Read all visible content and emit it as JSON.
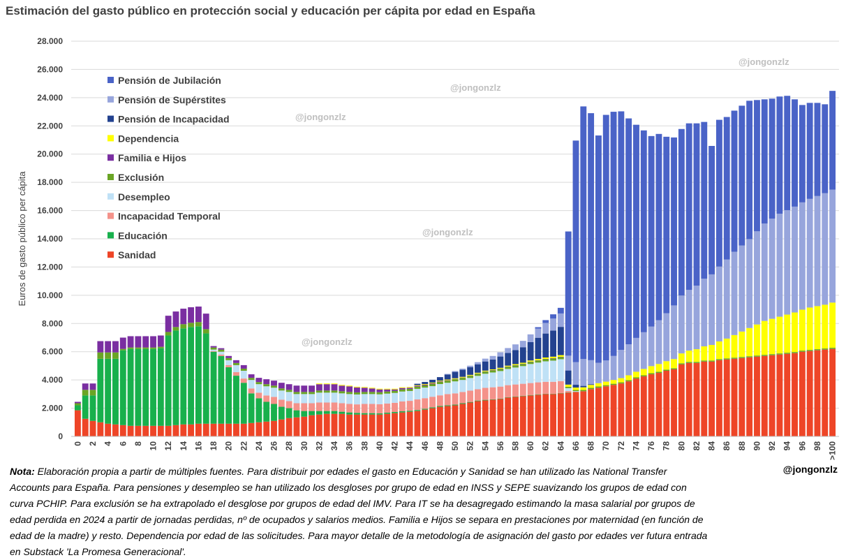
{
  "header": {
    "title": "Estimación del gasto público en protección social y educación per cápita por edad en España"
  },
  "watermarks": [
    "@jongonzlz",
    "@jongonzlz",
    "@jongonzlz",
    "@jongonzlz",
    "@jongonzlz"
  ],
  "note": {
    "label": "Nota:",
    "text": "Elaboración propia a partir de múltiples fuentes. Para distribuir por edades el gasto en Educación y Sanidad se han utilizado las National Transfer Accounts para España. Para pensiones y desempleo se han utilizado los desgloses por grupo de edad en INSS y SEPE suavizando los grupos de edad con curva PCHIP. Para exclusión se ha extrapolado el desglose por grupos de edad del IMV. Para IT se ha desagregado estimando la masa salarial por grupos de edad perdida en 2024 a partir de jornadas perdidas, nº de ocupados y salarios medios. Familia e Hijos se separa en prestaciones por maternidad (en función de edad de la madre) y resto. Dependencia por edad de las solicitudes. Para mayor detalle de la metodología de asignación del gasto por edades ver futura entrada en Substack 'La Promesa Generacional'."
  },
  "signature": "@jongonzlz",
  "chart_data": {
    "type": "bar",
    "stacked": true,
    "title": "Estimación del gasto público en protección social y educación per cápita por edad en España",
    "ylabel": "Euros de gasto público per cápita",
    "xlabel": "",
    "ylim": [
      0,
      28000
    ],
    "y_ticks": [
      "0",
      "2.000",
      "4.000",
      "6.000",
      "8.000",
      "10.000",
      "12.000",
      "14.000",
      "16.000",
      "18.000",
      "20.000",
      "22.000",
      "24.000",
      "26.000",
      "28.000"
    ],
    "y_tick_values": [
      0,
      2000,
      4000,
      6000,
      8000,
      10000,
      12000,
      14000,
      16000,
      18000,
      20000,
      22000,
      24000,
      26000,
      28000
    ],
    "categories": [
      "0",
      "1",
      "2",
      "3",
      "4",
      "5",
      "6",
      "7",
      "8",
      "9",
      "10",
      "11",
      "12",
      "13",
      "14",
      "15",
      "16",
      "17",
      "18",
      "19",
      "20",
      "21",
      "22",
      "23",
      "24",
      "25",
      "26",
      "27",
      "28",
      "29",
      "30",
      "31",
      "32",
      "33",
      "34",
      "35",
      "36",
      "37",
      "38",
      "39",
      "40",
      "41",
      "42",
      "43",
      "44",
      "45",
      "46",
      "47",
      "48",
      "49",
      "50",
      "51",
      "52",
      "53",
      "54",
      "55",
      "56",
      "57",
      "58",
      "59",
      "60",
      "61",
      "62",
      "63",
      "64",
      "65",
      "66",
      "67",
      "68",
      "69",
      "70",
      "71",
      "72",
      "73",
      "74",
      "75",
      "76",
      "77",
      "78",
      "79",
      "80",
      "81",
      "82",
      "83",
      "84",
      "85",
      "86",
      "87",
      "88",
      "89",
      "90",
      "91",
      "92",
      "93",
      "94",
      "95",
      "96",
      "97",
      "98",
      "99",
      ">100"
    ],
    "x_tick_labels": [
      "0",
      "2",
      "4",
      "6",
      "8",
      "10",
      "12",
      "14",
      "16",
      "18",
      "20",
      "22",
      "24",
      "26",
      "28",
      "30",
      "32",
      "34",
      "36",
      "38",
      "40",
      "42",
      "44",
      "46",
      "48",
      "50",
      "52",
      "54",
      "56",
      "58",
      "60",
      "62",
      "64",
      "66",
      "68",
      "70",
      "72",
      "74",
      "76",
      "78",
      "80",
      "82",
      "84",
      "86",
      "88",
      "90",
      "92",
      "94",
      "96",
      "98",
      ">100"
    ],
    "grid": true,
    "legend_position": "top-left",
    "series": [
      {
        "name": "Sanidad",
        "color": "#ee4527",
        "values": [
          1850,
          1250,
          1100,
          1000,
          900,
          850,
          800,
          750,
          750,
          750,
          750,
          750,
          750,
          800,
          850,
          850,
          900,
          900,
          900,
          900,
          900,
          900,
          900,
          950,
          1000,
          1050,
          1100,
          1200,
          1300,
          1350,
          1400,
          1500,
          1550,
          1600,
          1600,
          1600,
          1550,
          1550,
          1550,
          1550,
          1550,
          1600,
          1650,
          1700,
          1750,
          1800,
          1900,
          2000,
          2100,
          2150,
          2200,
          2300,
          2400,
          2500,
          2550,
          2600,
          2650,
          2750,
          2800,
          2850,
          2900,
          2950,
          3000,
          3000,
          3050,
          3100,
          3150,
          3200,
          3350,
          3450,
          3550,
          3650,
          3750,
          3900,
          4100,
          4250,
          4400,
          4500,
          4650,
          4750,
          5100,
          5200,
          5200,
          5300,
          5300,
          5400,
          5450,
          5500,
          5550,
          5600,
          5650,
          5700,
          5750,
          5800,
          5850,
          5900,
          6000,
          6050,
          6100,
          6150,
          6200
        ]
      },
      {
        "name": "Educación",
        "color": "#18b04c",
        "values": [
          350,
          1650,
          1800,
          4500,
          4600,
          4650,
          5300,
          5450,
          5450,
          5450,
          5450,
          5500,
          6400,
          6700,
          6800,
          6900,
          6900,
          6400,
          5100,
          4800,
          4000,
          3400,
          2900,
          2100,
          1700,
          1400,
          1200,
          900,
          700,
          500,
          400,
          300,
          250,
          200,
          200,
          150,
          150,
          120,
          100,
          100,
          80,
          80,
          80,
          80,
          70,
          70,
          60,
          60,
          60,
          50,
          50,
          50,
          40,
          40,
          40,
          30,
          30,
          30,
          30,
          30,
          30,
          30,
          20,
          20,
          20,
          20,
          10,
          10,
          10,
          10,
          0,
          0,
          0,
          0,
          0,
          0,
          0,
          0,
          0,
          0,
          0,
          0,
          0,
          0,
          0,
          0,
          0,
          0,
          0,
          0,
          0,
          0,
          0,
          0,
          0,
          0,
          0,
          0,
          0,
          0,
          0
        ]
      },
      {
        "name": "Incapacidad Temporal",
        "color": "#f4928a",
        "values": [
          0,
          0,
          0,
          0,
          0,
          0,
          0,
          0,
          0,
          0,
          0,
          0,
          0,
          0,
          0,
          0,
          0,
          0,
          50,
          100,
          150,
          250,
          300,
          350,
          400,
          450,
          500,
          500,
          500,
          500,
          550,
          550,
          600,
          600,
          600,
          600,
          600,
          600,
          650,
          650,
          650,
          650,
          650,
          700,
          700,
          750,
          750,
          750,
          750,
          800,
          800,
          800,
          800,
          800,
          850,
          850,
          850,
          850,
          850,
          850,
          850,
          850,
          850,
          850,
          850,
          100,
          0,
          0,
          0,
          0,
          0,
          0,
          0,
          0,
          0,
          0,
          0,
          0,
          0,
          0,
          0,
          0,
          0,
          0,
          0,
          0,
          0,
          0,
          0,
          0,
          0,
          0,
          0,
          0,
          0,
          0,
          0,
          0,
          0,
          0,
          0
        ]
      },
      {
        "name": "Desempleo",
        "color": "#bfe1f6",
        "values": [
          0,
          0,
          0,
          0,
          0,
          0,
          0,
          0,
          0,
          0,
          0,
          0,
          0,
          0,
          0,
          0,
          0,
          0,
          100,
          200,
          350,
          500,
          550,
          600,
          600,
          650,
          650,
          650,
          650,
          650,
          650,
          650,
          700,
          700,
          700,
          700,
          700,
          700,
          700,
          700,
          700,
          700,
          700,
          700,
          700,
          750,
          750,
          750,
          800,
          800,
          850,
          850,
          900,
          950,
          1000,
          1050,
          1100,
          1150,
          1200,
          1250,
          1350,
          1400,
          1450,
          1500,
          1550,
          200,
          50,
          0,
          0,
          0,
          0,
          0,
          0,
          0,
          0,
          0,
          0,
          0,
          0,
          0,
          0,
          0,
          0,
          0,
          0,
          0,
          0,
          0,
          0,
          0,
          0,
          0,
          0,
          0,
          0,
          0,
          0,
          0,
          0,
          0,
          0
        ]
      },
      {
        "name": "Exclusión",
        "color": "#6aa525",
        "values": [
          150,
          400,
          400,
          450,
          450,
          450,
          100,
          100,
          100,
          100,
          100,
          100,
          250,
          250,
          300,
          300,
          300,
          300,
          150,
          150,
          150,
          150,
          150,
          150,
          150,
          150,
          150,
          150,
          150,
          150,
          150,
          150,
          150,
          150,
          150,
          150,
          150,
          150,
          150,
          150,
          150,
          150,
          150,
          150,
          150,
          150,
          150,
          150,
          150,
          150,
          150,
          150,
          150,
          150,
          150,
          150,
          150,
          150,
          150,
          150,
          150,
          150,
          150,
          150,
          150,
          100,
          80,
          80,
          80,
          80,
          80,
          80,
          80,
          80,
          80,
          80,
          80,
          80,
          80,
          80,
          80,
          80,
          80,
          80,
          80,
          80,
          80,
          80,
          80,
          80,
          80,
          80,
          80,
          80,
          80,
          80,
          80,
          80,
          80,
          80,
          80
        ]
      },
      {
        "name": "Familia e Hijos",
        "color": "#7a2ea1",
        "values": [
          100,
          450,
          450,
          800,
          800,
          800,
          800,
          800,
          800,
          800,
          800,
          800,
          1150,
          1100,
          1100,
          1100,
          1100,
          1100,
          100,
          100,
          150,
          200,
          250,
          250,
          300,
          350,
          350,
          400,
          400,
          450,
          450,
          450,
          450,
          450,
          450,
          400,
          400,
          350,
          300,
          250,
          200,
          150,
          100,
          100,
          80,
          60,
          50,
          50,
          40,
          30,
          20,
          20,
          20,
          20,
          20,
          20,
          20,
          20,
          20,
          20,
          20,
          20,
          20,
          20,
          20,
          0,
          0,
          0,
          0,
          0,
          0,
          0,
          0,
          0,
          0,
          0,
          0,
          0,
          0,
          0,
          0,
          0,
          0,
          0,
          0,
          0,
          0,
          0,
          0,
          0,
          0,
          0,
          0,
          0,
          0,
          0,
          0,
          0,
          0,
          0,
          0
        ]
      },
      {
        "name": "Dependencia",
        "color": "#ffff00",
        "values": [
          0,
          0,
          0,
          0,
          0,
          0,
          0,
          0,
          0,
          0,
          0,
          0,
          0,
          0,
          0,
          0,
          0,
          0,
          0,
          0,
          0,
          0,
          0,
          0,
          0,
          0,
          0,
          0,
          0,
          0,
          0,
          0,
          50,
          50,
          50,
          50,
          50,
          50,
          50,
          50,
          50,
          50,
          50,
          50,
          50,
          50,
          50,
          50,
          50,
          50,
          50,
          50,
          50,
          50,
          50,
          50,
          60,
          60,
          70,
          70,
          80,
          90,
          100,
          110,
          120,
          150,
          170,
          190,
          210,
          230,
          250,
          270,
          300,
          350,
          400,
          450,
          500,
          550,
          600,
          650,
          700,
          800,
          900,
          1000,
          1100,
          1250,
          1400,
          1600,
          1800,
          2000,
          2200,
          2400,
          2500,
          2600,
          2700,
          2800,
          2900,
          3000,
          3050,
          3100,
          3200
        ]
      },
      {
        "name": "Pensión de Incapacidad",
        "color": "#23428f",
        "values": [
          0,
          0,
          0,
          0,
          0,
          0,
          0,
          0,
          0,
          0,
          0,
          0,
          0,
          0,
          0,
          0,
          0,
          0,
          0,
          0,
          0,
          0,
          0,
          0,
          0,
          0,
          0,
          0,
          0,
          0,
          0,
          0,
          0,
          0,
          0,
          0,
          0,
          0,
          0,
          0,
          0,
          0,
          0,
          0,
          0,
          100,
          150,
          200,
          250,
          350,
          450,
          500,
          550,
          600,
          650,
          700,
          800,
          900,
          1000,
          1100,
          1300,
          1500,
          1700,
          1850,
          2000,
          1000,
          200,
          100,
          50,
          0,
          0,
          0,
          0,
          0,
          0,
          0,
          0,
          0,
          0,
          0,
          0,
          0,
          0,
          0,
          0,
          0,
          0,
          0,
          0,
          0,
          0,
          0,
          0,
          0,
          0,
          0,
          0,
          0,
          0,
          0,
          0
        ]
      },
      {
        "name": "Pensión de Supérstites",
        "color": "#97a5dc",
        "values": [
          0,
          0,
          0,
          0,
          0,
          0,
          0,
          0,
          0,
          0,
          0,
          0,
          0,
          0,
          0,
          0,
          0,
          0,
          0,
          0,
          0,
          0,
          0,
          0,
          0,
          0,
          0,
          0,
          0,
          0,
          0,
          0,
          0,
          0,
          0,
          0,
          0,
          0,
          0,
          0,
          0,
          0,
          0,
          0,
          0,
          0,
          0,
          0,
          0,
          50,
          60,
          80,
          100,
          150,
          200,
          250,
          300,
          350,
          400,
          450,
          550,
          650,
          750,
          850,
          950,
          1050,
          1600,
          1900,
          1700,
          1450,
          1500,
          1700,
          2000,
          2200,
          2400,
          2600,
          2800,
          3100,
          3400,
          3800,
          4100,
          4300,
          4500,
          4800,
          5000,
          5300,
          5600,
          5900,
          6100,
          6300,
          6600,
          6900,
          7100,
          7300,
          7400,
          7500,
          7600,
          7700,
          7800,
          7900,
          8000
        ]
      },
      {
        "name": "Pensión de  Jubilación",
        "color": "#4a63c7",
        "values": [
          0,
          0,
          0,
          0,
          0,
          0,
          0,
          0,
          0,
          0,
          0,
          0,
          0,
          0,
          0,
          0,
          0,
          0,
          0,
          0,
          0,
          0,
          0,
          0,
          0,
          0,
          0,
          0,
          0,
          0,
          0,
          0,
          0,
          0,
          0,
          0,
          0,
          0,
          0,
          0,
          0,
          0,
          0,
          0,
          0,
          0,
          0,
          0,
          0,
          0,
          0,
          0,
          0,
          0,
          0,
          0,
          0,
          0,
          0,
          0,
          0,
          100,
          200,
          300,
          400,
          8800,
          15700,
          17900,
          17500,
          16100,
          17400,
          17300,
          16900,
          16000,
          15100,
          14300,
          13500,
          13200,
          12500,
          11900,
          11800,
          11800,
          11500,
          11100,
          9100,
          10400,
          10100,
          10000,
          9900,
          9800,
          9300,
          8800,
          8500,
          8300,
          8100,
          7600,
          6900,
          6800,
          6600,
          6300,
          7000
        ]
      }
    ]
  }
}
